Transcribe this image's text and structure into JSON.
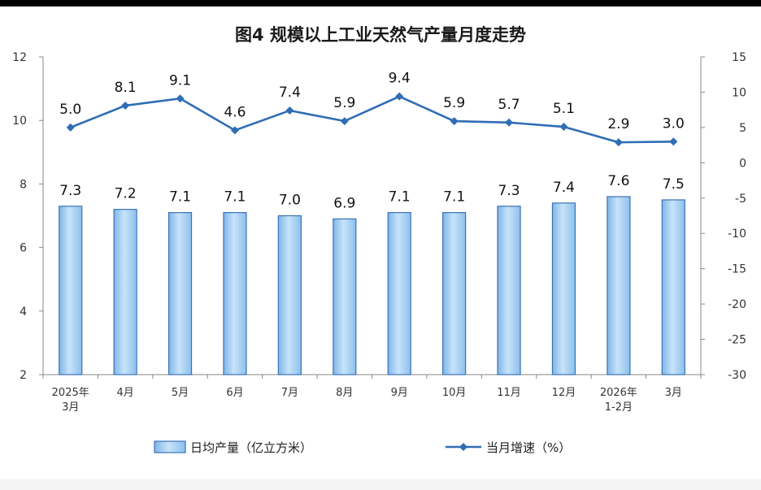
{
  "chart_data": {
    "type": "bar+line",
    "title": "图4  规模以上工业天然气产量月度走势",
    "categories": [
      [
        "2025年",
        "3月"
      ],
      [
        "4月"
      ],
      [
        "5月"
      ],
      [
        "6月"
      ],
      [
        "7月"
      ],
      [
        "8月"
      ],
      [
        "9月"
      ],
      [
        "10月"
      ],
      [
        "11月"
      ],
      [
        "12月"
      ],
      [
        "2026年",
        "1-2月"
      ],
      [
        "3月"
      ]
    ],
    "left_axis": {
      "ticks": [
        "12",
        "10",
        "8",
        "6",
        "4",
        "2"
      ],
      "ylim": [
        2,
        12
      ]
    },
    "right_axis": {
      "ticks": [
        "15",
        "10",
        "5",
        "0",
        "-5",
        "-10",
        "-15",
        "-20",
        "-25",
        "-30"
      ],
      "ylim": [
        -30,
        15
      ]
    },
    "series": [
      {
        "name": "日均产量（亿立方米）",
        "type": "bar",
        "axis": "left",
        "values": [
          7.3,
          7.2,
          7.1,
          7.1,
          7.0,
          6.9,
          7.1,
          7.1,
          7.3,
          7.4,
          7.6,
          7.5
        ],
        "labels": [
          "7.3",
          "7.2",
          "7.1",
          "7.1",
          "7.0",
          "6.9",
          "7.1",
          "7.1",
          "7.3",
          "7.4",
          "7.6",
          "7.5"
        ]
      },
      {
        "name": "当月增速（%）",
        "type": "line",
        "axis": "right",
        "values": [
          5.0,
          8.1,
          9.1,
          4.6,
          7.4,
          5.9,
          9.4,
          5.9,
          5.7,
          5.1,
          2.9,
          3.0
        ],
        "labels": [
          "5.0",
          "8.1",
          "9.1",
          "4.6",
          "7.4",
          "5.9",
          "9.4",
          "5.9",
          "5.7",
          "5.1",
          "2.9",
          "3.0"
        ]
      }
    ],
    "grid": false,
    "legend_position": "bottom"
  },
  "colors": {
    "bar_fill": "#a9d3f5",
    "bar_stroke": "#3a72b5",
    "line": "#2f6db5",
    "axis": "#888888"
  }
}
